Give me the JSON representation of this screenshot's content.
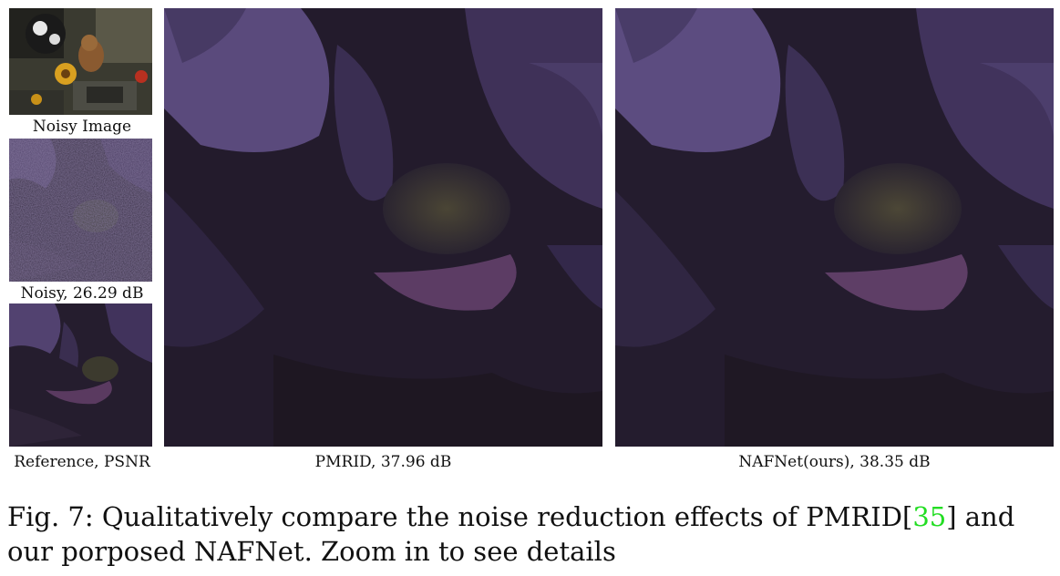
{
  "panels": {
    "noisy_image": {
      "caption": "Noisy Image"
    },
    "noisy_crop": {
      "caption": "Noisy, 26.29 dB"
    },
    "reference": {
      "caption": "Reference, PSNR"
    },
    "pmrid": {
      "caption": "PMRID, 37.96 dB"
    },
    "nafnet": {
      "caption": "NAFNet(ours), 38.35 dB"
    }
  },
  "figure_caption": {
    "label": "Fig. 7:",
    "text_before_ref": " Qualitatively compare the noise reduction effects of PMRID[",
    "ref_number": "35",
    "text_after_ref": "] and our porposed NAFNet. Zoom in to see details"
  },
  "colors": {
    "dark_bg": "#1c1522",
    "petal_light": "#5a4a7a",
    "petal_mid": "#3d2f55",
    "citation_green": "#22dd22"
  }
}
